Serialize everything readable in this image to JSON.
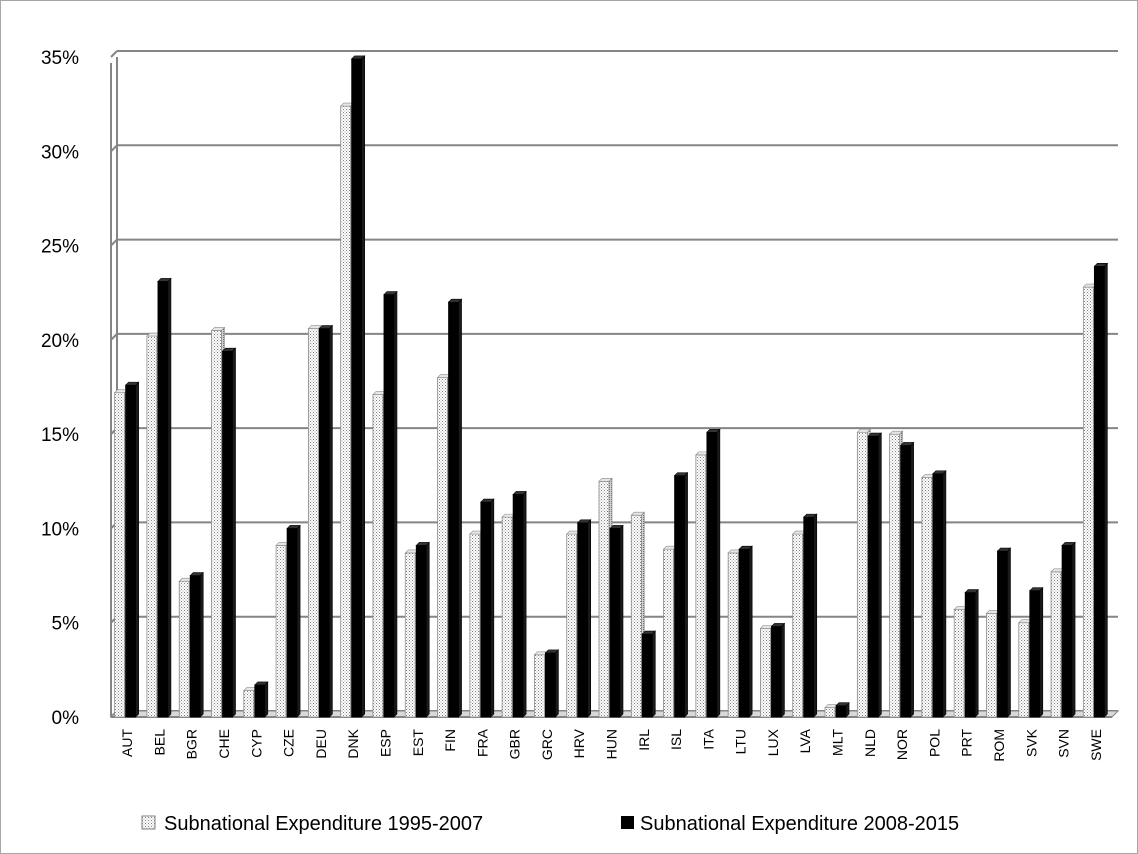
{
  "chart_data": {
    "type": "bar",
    "title": "",
    "xlabel": "",
    "ylabel": "",
    "ylim": [
      0,
      35
    ],
    "y_tick_values": [
      0,
      5,
      10,
      15,
      20,
      25,
      30,
      35
    ],
    "y_tick_labels": [
      "0%",
      "5%",
      "10%",
      "15%",
      "20%",
      "25%",
      "30%",
      "35%"
    ],
    "grid": true,
    "legend_position": "bottom",
    "categories": [
      "AUT",
      "BEL",
      "BGR",
      "CHE",
      "CYP",
      "CZE",
      "DEU",
      "DNK",
      "ESP",
      "EST",
      "FIN",
      "FRA",
      "GBR",
      "GRC",
      "HRV",
      "HUN",
      "IRL",
      "ISL",
      "ITA",
      "LTU",
      "LUX",
      "LVA",
      "MLT",
      "NLD",
      "NOR",
      "POL",
      "PRT",
      "ROM",
      "SVK",
      "SVN",
      "SWE"
    ],
    "series": [
      {
        "name": "Subnational Expenditure 1995-2007",
        "pattern": "dotted",
        "color": "#ffffff",
        "values": [
          17.2,
          20.2,
          7.2,
          20.5,
          1.4,
          9.1,
          20.6,
          32.4,
          17.1,
          8.7,
          18.0,
          9.7,
          10.6,
          3.3,
          9.7,
          12.5,
          10.7,
          8.9,
          13.9,
          8.7,
          4.7,
          9.7,
          0.5,
          15.1,
          15.0,
          12.7,
          5.7,
          5.5,
          5.0,
          7.7,
          22.8
        ]
      },
      {
        "name": "Subnational Expenditure 2008-2015",
        "pattern": "solid",
        "color": "#000000",
        "values": [
          17.6,
          23.1,
          7.5,
          19.4,
          1.7,
          10.0,
          20.6,
          34.9,
          22.4,
          9.1,
          22.0,
          11.4,
          11.8,
          3.4,
          10.3,
          10.0,
          4.4,
          12.8,
          15.1,
          8.9,
          4.8,
          10.6,
          0.6,
          14.9,
          14.4,
          12.9,
          6.6,
          8.8,
          6.7,
          9.1,
          23.9
        ]
      }
    ]
  },
  "legend": {
    "items": [
      {
        "label": "Subnational Expenditure 1995-2007"
      },
      {
        "label": "Subnational Expenditure 2008-2015"
      }
    ]
  }
}
